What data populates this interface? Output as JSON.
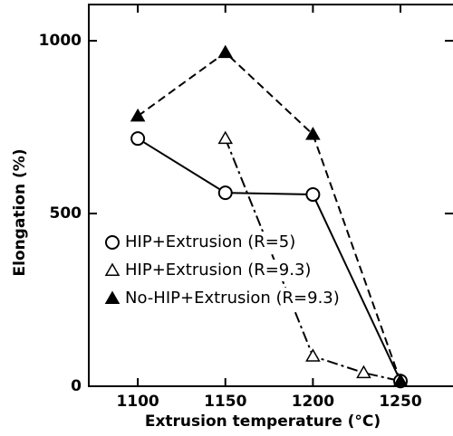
{
  "chart_data": {
    "type": "line",
    "x_label": "Extrusion temperature (°C)",
    "y_label": "Elongation (%)",
    "xlim": [
      1072,
      1280
    ],
    "xticks": [
      1100,
      1150,
      1200,
      1250
    ],
    "ylim": [
      0,
      1105
    ],
    "yticks": [
      0,
      500,
      1000
    ],
    "series": [
      {
        "name": "HIP+Extrusion (R=5)",
        "color": "#000000",
        "marker": "circle",
        "line": "solid",
        "x": [
          1100,
          1150,
          1200,
          1250
        ],
        "values": [
          717,
          560,
          555,
          15
        ]
      },
      {
        "name": "HIP+Extrusion (R=9.3)",
        "color": "#000000",
        "marker": "triangle-open",
        "line": "dashdot",
        "x": [
          1150,
          1200,
          1229,
          1250
        ],
        "values": [
          717,
          87,
          39,
          15
        ]
      },
      {
        "name": "No-HIP+Extrusion (R=9.3)",
        "color": "#000000",
        "marker": "triangle",
        "line": "dashed",
        "x": [
          1100,
          1150,
          1200,
          1250
        ],
        "values": [
          782,
          966,
          729,
          15
        ]
      }
    ]
  }
}
